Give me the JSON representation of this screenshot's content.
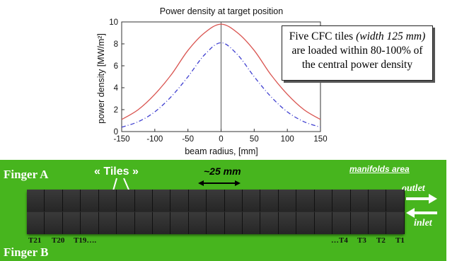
{
  "chart_data": {
    "type": "line",
    "title": "Power density at target position",
    "xlabel": "beam radius, [mm]",
    "ylabel": "power density [MW/m²]",
    "xlim": [
      -150,
      150
    ],
    "ylim": [
      0,
      10
    ],
    "xticks": [
      -150,
      -100,
      -50,
      0,
      50,
      100,
      150
    ],
    "yticks": [
      0,
      2,
      4,
      6,
      8,
      10
    ],
    "grid": false,
    "series": [
      {
        "style": "solid",
        "color": "#d9534f",
        "x": [
          -150,
          -125,
          -100,
          -75,
          -50,
          -25,
          0,
          25,
          50,
          75,
          100,
          125,
          150
        ],
        "y": [
          1.1,
          2.0,
          3.4,
          5.2,
          7.4,
          9.0,
          9.8,
          9.0,
          7.4,
          5.2,
          3.4,
          2.0,
          1.1
        ]
      },
      {
        "style": "dash-dot",
        "color": "#4040d0",
        "x": [
          -150,
          -125,
          -100,
          -75,
          -50,
          -25,
          0,
          25,
          50,
          75,
          100,
          125,
          150
        ],
        "y": [
          0.4,
          0.9,
          1.8,
          3.2,
          5.0,
          7.0,
          8.1,
          7.0,
          5.0,
          3.2,
          1.8,
          0.9,
          0.4
        ]
      }
    ]
  },
  "callout": {
    "line1_a": "Five CFC tiles ",
    "line1_b": "(width 125 mm)",
    "line2": "are loaded within 80-100% of",
    "line3": "the central power density"
  },
  "photo": {
    "finger_a": "Finger A",
    "finger_b": "Finger B",
    "tiles": "« Tiles »",
    "width": "~25 mm",
    "manifolds": "manifolds area",
    "outlet": "outlet",
    "inlet": "inlet",
    "tile_labels_left": [
      "T21",
      "T20",
      "T19…."
    ],
    "tile_labels_right": [
      "…T4",
      "T3",
      "T2",
      "T1"
    ],
    "colors": {
      "background": "#47b51e",
      "tile": "#2a2a2a",
      "text": "#ffffff"
    }
  }
}
